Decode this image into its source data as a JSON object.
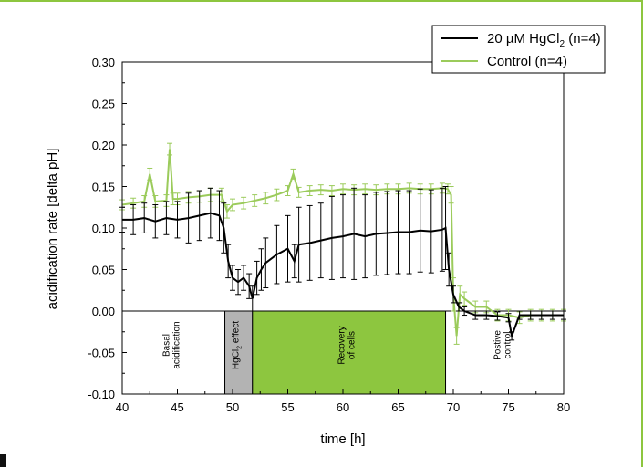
{
  "chart_data": {
    "type": "line",
    "xlabel": "time [h]",
    "ylabel": "acidification rate [delta pH]",
    "xlim": [
      40,
      80
    ],
    "ylim": [
      -0.1,
      0.3
    ],
    "x_ticks": [
      "40",
      "45",
      "50",
      "55",
      "60",
      "65",
      "70",
      "75",
      "80"
    ],
    "y_ticks": [
      "-0.10",
      "-0.05",
      "0.00",
      "0.05",
      "0.10",
      "0.15",
      "0.20",
      "0.25",
      "0.30"
    ],
    "zero_line": true,
    "legend_position": "top-right",
    "legend": [
      {
        "label_main": "20 µM HgCl",
        "label_sub": "2",
        "label_tail": " (n=4)",
        "color": "#000000"
      },
      {
        "label_main": "Control (n=4)",
        "label_sub": "",
        "label_tail": "",
        "color": "#9bcb5b"
      }
    ],
    "regions": [
      {
        "x0": 40.0,
        "x1": 49.3,
        "lines": [
          "Basal",
          "acidification"
        ],
        "fill": "#ffffff"
      },
      {
        "x0": 49.3,
        "x1": 51.8,
        "lines": [
          "HgCl",
          "2",
          " effect"
        ],
        "fill": "#b3b3b3"
      },
      {
        "x0": 51.8,
        "x1": 69.3,
        "lines": [
          "Recovery",
          "of cells"
        ],
        "fill": "#8dc63f"
      },
      {
        "x0": 69.3,
        "x1": 80.0,
        "lines": [
          "Postive",
          "control"
        ],
        "fill": "#ffffff"
      }
    ],
    "series": [
      {
        "name": "20 µM HgCl2 (n=4)",
        "color": "#000000",
        "x": [
          40,
          41,
          42,
          43,
          44,
          45,
          46,
          47,
          48,
          48.8,
          49.2,
          49.6,
          50,
          50.5,
          51,
          51.5,
          51.8,
          52.2,
          52.6,
          53,
          54,
          55,
          55.6,
          56,
          57,
          58,
          59,
          60,
          61,
          62,
          63,
          64,
          65,
          66,
          67,
          68,
          69,
          69.3,
          69.6,
          70,
          70.5,
          71,
          72,
          73,
          74,
          75,
          75.3,
          76,
          77,
          78,
          79,
          80
        ],
        "y": [
          0.11,
          0.11,
          0.112,
          0.108,
          0.112,
          0.11,
          0.112,
          0.115,
          0.118,
          0.115,
          0.1,
          0.06,
          0.04,
          0.035,
          0.04,
          0.03,
          0.015,
          0.04,
          0.05,
          0.058,
          0.068,
          0.075,
          0.06,
          0.08,
          0.082,
          0.085,
          0.088,
          0.09,
          0.093,
          0.09,
          0.093,
          0.094,
          0.095,
          0.095,
          0.097,
          0.096,
          0.098,
          0.1,
          0.05,
          0.02,
          0.005,
          0.0,
          -0.005,
          -0.005,
          -0.006,
          -0.008,
          -0.03,
          -0.005,
          -0.005,
          -0.005,
          -0.005,
          -0.005
        ],
        "error": [
          0.015,
          0.018,
          0.018,
          0.02,
          0.02,
          0.022,
          0.03,
          0.03,
          0.03,
          0.03,
          0.03,
          0.02,
          0.015,
          0.015,
          0.015,
          0.015,
          0.015,
          0.02,
          0.025,
          0.03,
          0.035,
          0.04,
          0.02,
          0.045,
          0.045,
          0.045,
          0.05,
          0.05,
          0.055,
          0.05,
          0.05,
          0.05,
          0.05,
          0.05,
          0.05,
          0.05,
          0.05,
          0.05,
          0.02,
          0.01,
          0.005,
          0.005,
          0.005,
          0.005,
          0.005,
          0.005,
          0.005,
          0.005,
          0.005,
          0.005,
          0.005,
          0.005
        ]
      },
      {
        "name": "Control (n=4)",
        "color": "#9bcb5b",
        "x": [
          40,
          41,
          42,
          42.5,
          43,
          44,
          44.3,
          44.6,
          45,
          46,
          47,
          48,
          49,
          49.5,
          50,
          51,
          52,
          53,
          54,
          55,
          55.5,
          56,
          57,
          58,
          59,
          60,
          61,
          62,
          63,
          64,
          65,
          66,
          67,
          68,
          69,
          69.5,
          69.8,
          70,
          70.3,
          70.6,
          71,
          72,
          73,
          74,
          75,
          76,
          77,
          78,
          79,
          80
        ],
        "y": [
          0.128,
          0.13,
          0.132,
          0.165,
          0.132,
          0.133,
          0.195,
          0.135,
          0.135,
          0.137,
          0.138,
          0.14,
          0.14,
          0.12,
          0.128,
          0.13,
          0.133,
          0.136,
          0.14,
          0.145,
          0.165,
          0.143,
          0.145,
          0.146,
          0.145,
          0.147,
          0.146,
          0.147,
          0.146,
          0.147,
          0.147,
          0.148,
          0.147,
          0.147,
          0.148,
          0.147,
          0.14,
          0.02,
          -0.03,
          0.02,
          0.015,
          0.005,
          0.005,
          -0.005,
          -0.005,
          -0.008,
          -0.005,
          -0.005,
          -0.005,
          -0.005
        ],
        "error": [
          0.006,
          0.006,
          0.007,
          0.007,
          0.007,
          0.007,
          0.007,
          0.007,
          0.007,
          0.007,
          0.007,
          0.008,
          0.008,
          0.008,
          0.007,
          0.007,
          0.007,
          0.007,
          0.007,
          0.006,
          0.006,
          0.006,
          0.006,
          0.006,
          0.006,
          0.006,
          0.006,
          0.006,
          0.006,
          0.006,
          0.006,
          0.006,
          0.006,
          0.006,
          0.006,
          0.006,
          0.01,
          0.02,
          0.01,
          0.01,
          0.008,
          0.007,
          0.007,
          0.007,
          0.007,
          0.007,
          0.007,
          0.007,
          0.007,
          0.007
        ]
      }
    ]
  }
}
